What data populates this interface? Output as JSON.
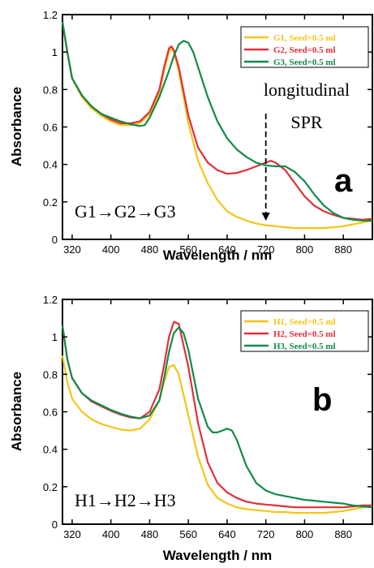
{
  "colors": {
    "yellow": "#f5c518",
    "red": "#e0303a",
    "green": "#128a48"
  },
  "chart_data": [
    {
      "type": "line",
      "panel_label": "a",
      "xlabel": "Wavelength / nm",
      "ylabel": "Absorbance",
      "xlim": [
        300,
        940
      ],
      "ylim": [
        0,
        1.2
      ],
      "xticks": [
        320,
        400,
        480,
        560,
        640,
        720,
        800,
        880
      ],
      "yticks": [
        0,
        0.2,
        0.4,
        0.6,
        0.8,
        1,
        1.2
      ],
      "ytick_labels": [
        "0",
        "0.2",
        "0.4",
        "0.6",
        "0.8",
        "1",
        "1.2"
      ],
      "legend_position": "top-right",
      "annotation_lines": [
        "longitudinal",
        "SPR"
      ],
      "arrow_label": "G1→G2→G3",
      "arrow_x": 720,
      "series": [
        {
          "name": "G1, Seed=0.5 ml",
          "color": "yellow",
          "x": [
            300,
            310,
            320,
            340,
            360,
            380,
            400,
            420,
            440,
            460,
            480,
            500,
            510,
            520,
            525,
            530,
            540,
            560,
            580,
            600,
            620,
            640,
            660,
            680,
            700,
            720,
            740,
            760,
            780,
            800,
            820,
            840,
            860,
            880,
            900,
            920,
            940
          ],
          "y": [
            1.16,
            1.0,
            0.86,
            0.76,
            0.7,
            0.66,
            0.63,
            0.61,
            0.61,
            0.62,
            0.67,
            0.78,
            0.9,
            1.0,
            1.02,
            1.0,
            0.9,
            0.62,
            0.42,
            0.3,
            0.21,
            0.15,
            0.12,
            0.1,
            0.085,
            0.075,
            0.07,
            0.065,
            0.06,
            0.06,
            0.06,
            0.06,
            0.065,
            0.07,
            0.08,
            0.09,
            0.1
          ]
        },
        {
          "name": "G2, Seed=0.5 ml",
          "color": "red",
          "x": [
            300,
            310,
            320,
            340,
            360,
            380,
            400,
            420,
            440,
            460,
            480,
            500,
            510,
            520,
            525,
            530,
            540,
            560,
            580,
            600,
            620,
            640,
            660,
            680,
            700,
            720,
            730,
            740,
            760,
            780,
            800,
            820,
            840,
            860,
            880,
            900,
            920,
            940
          ],
          "y": [
            1.16,
            1.0,
            0.86,
            0.77,
            0.71,
            0.67,
            0.64,
            0.62,
            0.62,
            0.63,
            0.68,
            0.8,
            0.92,
            1.02,
            1.03,
            1.01,
            0.92,
            0.66,
            0.49,
            0.41,
            0.37,
            0.35,
            0.355,
            0.37,
            0.39,
            0.41,
            0.42,
            0.41,
            0.37,
            0.3,
            0.23,
            0.18,
            0.15,
            0.13,
            0.115,
            0.11,
            0.105,
            0.11
          ]
        },
        {
          "name": "G3, Seed=0.5 ml",
          "color": "green",
          "x": [
            300,
            310,
            320,
            340,
            360,
            380,
            400,
            420,
            440,
            460,
            470,
            480,
            500,
            520,
            530,
            540,
            550,
            560,
            570,
            580,
            600,
            620,
            640,
            660,
            680,
            700,
            720,
            740,
            760,
            780,
            800,
            820,
            840,
            860,
            880,
            900,
            920,
            940
          ],
          "y": [
            1.16,
            1.0,
            0.86,
            0.77,
            0.71,
            0.67,
            0.65,
            0.63,
            0.615,
            0.605,
            0.61,
            0.65,
            0.76,
            0.9,
            0.98,
            1.04,
            1.06,
            1.05,
            1.0,
            0.92,
            0.76,
            0.63,
            0.54,
            0.48,
            0.44,
            0.41,
            0.395,
            0.39,
            0.39,
            0.36,
            0.31,
            0.24,
            0.18,
            0.14,
            0.115,
            0.105,
            0.1,
            0.1
          ]
        }
      ]
    },
    {
      "type": "line",
      "panel_label": "b",
      "xlabel": "Wavelength / nm",
      "ylabel": "Absorbance",
      "xlim": [
        300,
        940
      ],
      "ylim": [
        0,
        1.2
      ],
      "xticks": [
        320,
        400,
        480,
        560,
        640,
        720,
        800,
        880
      ],
      "yticks": [
        0,
        0.2,
        0.4,
        0.6,
        0.8,
        1,
        1.2
      ],
      "ytick_labels": [
        "0",
        "0.2",
        "0.4",
        "0.6",
        "0.8",
        "1",
        "1.2"
      ],
      "legend_position": "top-right",
      "arrow_label": "H1→H2→H3",
      "series": [
        {
          "name": "H1, Seed=0.5 ml",
          "color": "yellow",
          "x": [
            300,
            310,
            320,
            340,
            360,
            380,
            400,
            420,
            440,
            460,
            480,
            500,
            510,
            520,
            530,
            540,
            560,
            580,
            600,
            620,
            640,
            660,
            680,
            700,
            720,
            740,
            760,
            780,
            800,
            820,
            840,
            860,
            880,
            900,
            920,
            940
          ],
          "y": [
            0.9,
            0.76,
            0.67,
            0.6,
            0.56,
            0.535,
            0.52,
            0.505,
            0.5,
            0.51,
            0.56,
            0.66,
            0.76,
            0.84,
            0.85,
            0.8,
            0.58,
            0.36,
            0.21,
            0.14,
            0.11,
            0.09,
            0.08,
            0.075,
            0.07,
            0.065,
            0.065,
            0.06,
            0.06,
            0.06,
            0.06,
            0.065,
            0.07,
            0.08,
            0.09,
            0.1
          ]
        },
        {
          "name": "H2, Seed=0.5 ml",
          "color": "red",
          "x": [
            300,
            310,
            320,
            340,
            360,
            380,
            400,
            420,
            440,
            460,
            480,
            500,
            510,
            520,
            530,
            540,
            560,
            580,
            600,
            620,
            640,
            660,
            680,
            700,
            720,
            740,
            760,
            780,
            800,
            820,
            840,
            860,
            880,
            900,
            920,
            940
          ],
          "y": [
            1.06,
            0.88,
            0.78,
            0.7,
            0.655,
            0.63,
            0.605,
            0.585,
            0.57,
            0.565,
            0.6,
            0.72,
            0.85,
            1.0,
            1.08,
            1.07,
            0.84,
            0.54,
            0.33,
            0.22,
            0.17,
            0.14,
            0.12,
            0.11,
            0.105,
            0.1,
            0.095,
            0.09,
            0.09,
            0.09,
            0.09,
            0.09,
            0.09,
            0.095,
            0.1,
            0.1
          ]
        },
        {
          "name": "H3, Seed=0.5 ml",
          "color": "green",
          "x": [
            300,
            310,
            320,
            340,
            360,
            380,
            400,
            420,
            440,
            460,
            480,
            500,
            510,
            520,
            530,
            540,
            550,
            560,
            580,
            600,
            610,
            620,
            630,
            640,
            650,
            660,
            670,
            680,
            700,
            720,
            740,
            760,
            780,
            800,
            820,
            840,
            860,
            880,
            900,
            920,
            940
          ],
          "y": [
            1.06,
            0.88,
            0.78,
            0.7,
            0.66,
            0.635,
            0.61,
            0.59,
            0.575,
            0.565,
            0.58,
            0.66,
            0.78,
            0.92,
            1.02,
            1.05,
            1.02,
            0.93,
            0.67,
            0.52,
            0.49,
            0.49,
            0.5,
            0.51,
            0.5,
            0.45,
            0.38,
            0.31,
            0.22,
            0.18,
            0.16,
            0.15,
            0.14,
            0.13,
            0.125,
            0.12,
            0.115,
            0.11,
            0.1,
            0.095,
            0.09
          ]
        }
      ]
    }
  ]
}
